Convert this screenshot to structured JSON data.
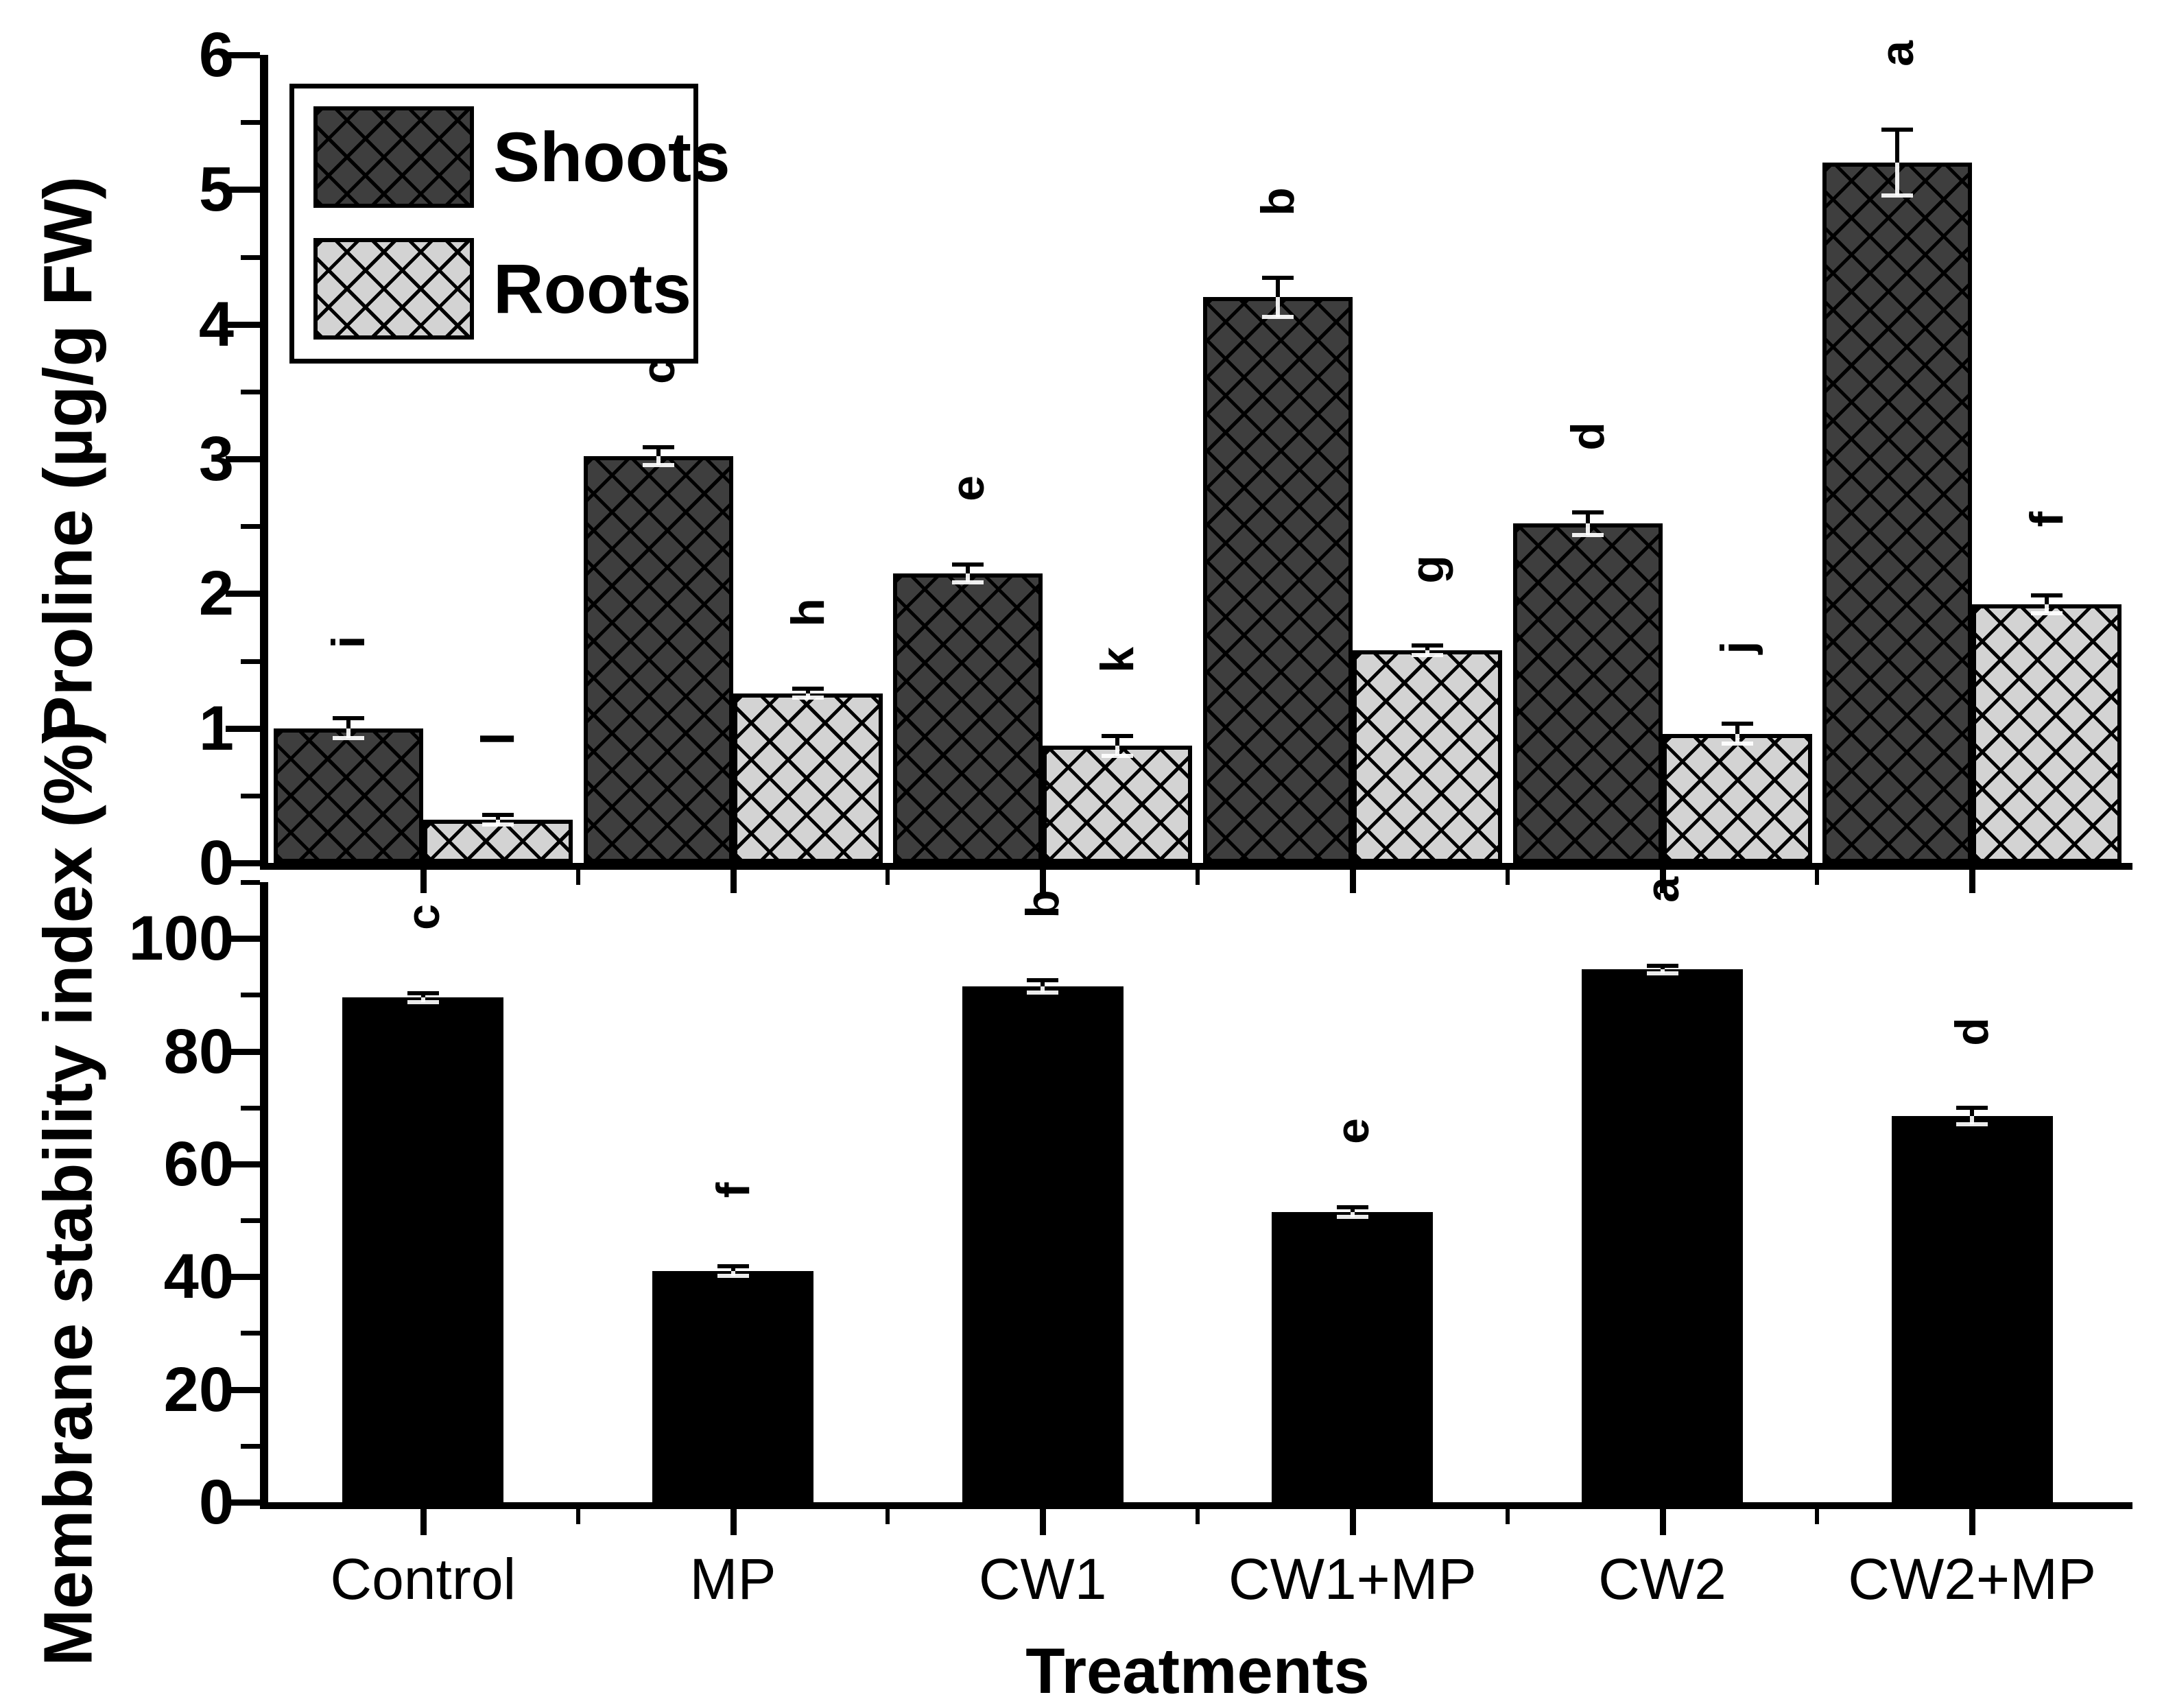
{
  "figure_title": "",
  "x_axis": {
    "label": "Treatments",
    "categories": [
      "Control",
      "MP",
      "CW1",
      "CW1+MP",
      "CW2",
      "CW2+MP"
    ]
  },
  "legend": {
    "items": [
      {
        "label": "Shoots",
        "swatch": "dark-crosshatch"
      },
      {
        "label": "Roots",
        "swatch": "light-crosshatch"
      }
    ]
  },
  "colors": {
    "shoots_fill": "#3e3e3e",
    "roots_fill": "#d3d3d3",
    "hatch_line": "#000000",
    "msi_fill": "#000000",
    "axis": "#000000",
    "background": "#ffffff"
  },
  "chart_data": [
    {
      "type": "bar",
      "panel": "top",
      "ylabel": "Proline (µg/g FW)",
      "ylim": [
        0,
        6
      ],
      "yticks": [
        0,
        1,
        2,
        3,
        4,
        5,
        6
      ],
      "yminor_step": 0.5,
      "grid": false,
      "legend_position": "top-left-inside",
      "categories": [
        "Control",
        "MP",
        "CW1",
        "CW1+MP",
        "CW2",
        "CW2+MP"
      ],
      "series": [
        {
          "name": "Shoots",
          "values": [
            1.0,
            3.02,
            2.15,
            4.2,
            2.52,
            5.2
          ],
          "errors": [
            0.09,
            0.08,
            0.08,
            0.16,
            0.1,
            0.26
          ],
          "sig_letters": [
            "i",
            "c",
            "e",
            "b",
            "d",
            "a"
          ]
        },
        {
          "name": "Roots",
          "values": [
            0.32,
            1.26,
            0.87,
            1.58,
            0.96,
            1.92
          ],
          "errors": [
            0.05,
            0.05,
            0.09,
            0.05,
            0.09,
            0.08
          ],
          "sig_letters": [
            "l",
            "h",
            "k",
            "g",
            "j",
            "f"
          ]
        }
      ]
    },
    {
      "type": "bar",
      "panel": "bottom",
      "ylabel": "Membrane stability index (%)",
      "ylim": [
        0,
        110
      ],
      "yticks": [
        0,
        20,
        40,
        60,
        80,
        100
      ],
      "yminor_step": 10,
      "grid": false,
      "categories": [
        "Control",
        "MP",
        "CW1",
        "CW1+MP",
        "CW2",
        "CW2+MP"
      ],
      "series": [
        {
          "name": "Membrane stability index",
          "values": [
            89.5,
            41.0,
            91.5,
            51.5,
            94.5,
            68.5
          ],
          "errors": [
            1.2,
            1.2,
            1.5,
            1.2,
            1.0,
            1.8
          ],
          "sig_letters": [
            "c",
            "f",
            "b",
            "e",
            "a",
            "d"
          ]
        }
      ]
    }
  ]
}
